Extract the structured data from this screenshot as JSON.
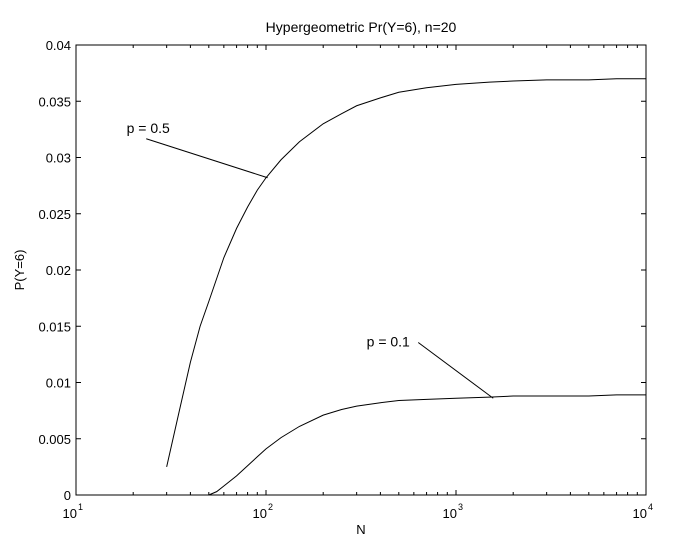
{
  "chart_data": {
    "type": "line",
    "title": "Hypergeometric Pr(Y=6), n=20",
    "xlabel": "N",
    "ylabel": "P(Y=6)",
    "x_scale": "log",
    "xlim": [
      10,
      10000
    ],
    "ylim": [
      0,
      0.04
    ],
    "grid": false,
    "x_ticks": [
      {
        "value": 10,
        "base": "10",
        "exp": "1"
      },
      {
        "value": 100,
        "base": "10",
        "exp": "2"
      },
      {
        "value": 1000,
        "base": "10",
        "exp": "3"
      },
      {
        "value": 10000,
        "base": "10",
        "exp": "4"
      }
    ],
    "y_ticks": [
      {
        "value": 0,
        "label": "0"
      },
      {
        "value": 0.005,
        "label": "0.005"
      },
      {
        "value": 0.01,
        "label": "0.01"
      },
      {
        "value": 0.015,
        "label": "0.015"
      },
      {
        "value": 0.02,
        "label": "0.02"
      },
      {
        "value": 0.025,
        "label": "0.025"
      },
      {
        "value": 0.03,
        "label": "0.03"
      },
      {
        "value": 0.035,
        "label": "0.035"
      },
      {
        "value": 0.04,
        "label": "0.04"
      }
    ],
    "series": [
      {
        "x": [
          30,
          35,
          40,
          45,
          50,
          60,
          70,
          80,
          90,
          100,
          120,
          150,
          200,
          250,
          300,
          400,
          500,
          700,
          1000,
          1500,
          2000,
          3000,
          5000,
          7000,
          10000
        ],
        "y": [
          0.0025,
          0.0075,
          0.0118,
          0.015,
          0.0172,
          0.0211,
          0.0237,
          0.0256,
          0.0271,
          0.0282,
          0.0298,
          0.0314,
          0.033,
          0.0339,
          0.0346,
          0.0353,
          0.0358,
          0.0362,
          0.0365,
          0.0367,
          0.0368,
          0.0369,
          0.0369,
          0.037,
          0.037
        ]
      },
      {
        "x": [
          50,
          55,
          60,
          70,
          80,
          90,
          100,
          120,
          150,
          200,
          250,
          300,
          400,
          500,
          700,
          1000,
          1500,
          2000,
          3000,
          5000,
          7000,
          10000
        ],
        "y": [
          0.0,
          0.0003,
          0.0008,
          0.0017,
          0.0026,
          0.0034,
          0.0041,
          0.0051,
          0.0061,
          0.0071,
          0.0076,
          0.0079,
          0.0082,
          0.0084,
          0.0085,
          0.0086,
          0.0087,
          0.0088,
          0.0088,
          0.0088,
          0.0089,
          0.0089
        ]
      }
    ],
    "annotations": [
      {
        "text": "p = 0.5",
        "text_at": [
          24,
          0.0322
        ],
        "arrow_to": [
          102,
          0.0282
        ]
      },
      {
        "text": "p = 0.1",
        "text_at": [
          440,
          0.0132
        ],
        "arrow_to": [
          1570,
          0.0086
        ]
      }
    ]
  }
}
